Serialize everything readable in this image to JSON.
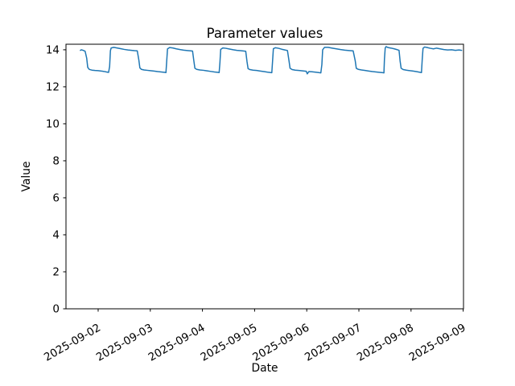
{
  "chart_data": {
    "type": "line",
    "title": "Parameter values",
    "xlabel": "Date",
    "ylabel": "Value",
    "grid": false,
    "legend": "none",
    "line_color": "#1f77b4",
    "line_width": 1.5,
    "axis_color": "#000000",
    "x_unit": "days since 2025-09-02 00:00",
    "xlim_days": [
      -0.617,
      7.006
    ],
    "ylim": [
      0,
      14.3
    ],
    "x_tick_positions_days": [
      0,
      1,
      2,
      3,
      4,
      5,
      6,
      7
    ],
    "x_tick_labels": [
      "2025-09-02",
      "2025-09-03",
      "2025-09-04",
      "2025-09-05",
      "2025-09-06",
      "2025-09-07",
      "2025-09-08",
      "2025-09-09"
    ],
    "y_ticks": [
      0,
      2,
      4,
      6,
      8,
      10,
      12,
      14
    ],
    "series": [
      {
        "name": "Parameter",
        "points": [
          [
            -0.34,
            13.97
          ],
          [
            -0.32,
            14.0
          ],
          [
            -0.29,
            13.97
          ],
          [
            -0.25,
            13.92
          ],
          [
            -0.22,
            13.55
          ],
          [
            -0.2,
            13.05
          ],
          [
            -0.17,
            12.94
          ],
          [
            -0.12,
            12.9
          ],
          [
            -0.06,
            12.88
          ],
          [
            0.0,
            12.87
          ],
          [
            0.06,
            12.85
          ],
          [
            0.11,
            12.83
          ],
          [
            0.16,
            12.8
          ],
          [
            0.2,
            12.78
          ],
          [
            0.22,
            13.1
          ],
          [
            0.235,
            13.95
          ],
          [
            0.25,
            14.1
          ],
          [
            0.3,
            14.13
          ],
          [
            0.36,
            14.1
          ],
          [
            0.43,
            14.06
          ],
          [
            0.5,
            14.02
          ],
          [
            0.57,
            13.99
          ],
          [
            0.64,
            13.97
          ],
          [
            0.7,
            13.95
          ],
          [
            0.75,
            13.94
          ],
          [
            0.78,
            13.45
          ],
          [
            0.8,
            13.02
          ],
          [
            0.83,
            12.94
          ],
          [
            0.88,
            12.91
          ],
          [
            0.94,
            12.89
          ],
          [
            1.0,
            12.87
          ],
          [
            1.07,
            12.85
          ],
          [
            1.14,
            12.82
          ],
          [
            1.21,
            12.8
          ],
          [
            1.28,
            12.78
          ],
          [
            1.3,
            12.77
          ],
          [
            1.315,
            13.4
          ],
          [
            1.33,
            14.05
          ],
          [
            1.37,
            14.12
          ],
          [
            1.43,
            14.1
          ],
          [
            1.5,
            14.05
          ],
          [
            1.57,
            14.01
          ],
          [
            1.64,
            13.98
          ],
          [
            1.71,
            13.96
          ],
          [
            1.78,
            13.94
          ],
          [
            1.81,
            13.93
          ],
          [
            1.835,
            13.4
          ],
          [
            1.855,
            13.0
          ],
          [
            1.89,
            12.94
          ],
          [
            1.95,
            12.91
          ],
          [
            2.02,
            12.89
          ],
          [
            2.09,
            12.86
          ],
          [
            2.16,
            12.83
          ],
          [
            2.23,
            12.8
          ],
          [
            2.3,
            12.78
          ],
          [
            2.32,
            12.77
          ],
          [
            2.335,
            13.3
          ],
          [
            2.35,
            14.02
          ],
          [
            2.39,
            14.1
          ],
          [
            2.45,
            14.08
          ],
          [
            2.52,
            14.04
          ],
          [
            2.59,
            14.0
          ],
          [
            2.66,
            13.97
          ],
          [
            2.73,
            13.95
          ],
          [
            2.8,
            13.93
          ],
          [
            2.83,
            13.92
          ],
          [
            2.855,
            13.35
          ],
          [
            2.875,
            12.98
          ],
          [
            2.91,
            12.93
          ],
          [
            2.97,
            12.9
          ],
          [
            3.04,
            12.88
          ],
          [
            3.11,
            12.85
          ],
          [
            3.18,
            12.82
          ],
          [
            3.25,
            12.79
          ],
          [
            3.31,
            12.77
          ],
          [
            3.33,
            12.76
          ],
          [
            3.345,
            13.4
          ],
          [
            3.36,
            14.06
          ],
          [
            3.4,
            14.11
          ],
          [
            3.46,
            14.08
          ],
          [
            3.52,
            14.03
          ],
          [
            3.58,
            13.99
          ],
          [
            3.63,
            13.96
          ],
          [
            3.66,
            13.4
          ],
          [
            3.68,
            13.0
          ],
          [
            3.72,
            12.93
          ],
          [
            3.78,
            12.9
          ],
          [
            3.85,
            12.88
          ],
          [
            3.92,
            12.86
          ],
          [
            3.99,
            12.84
          ],
          [
            4.01,
            12.7
          ],
          [
            4.04,
            12.82
          ],
          [
            4.1,
            12.81
          ],
          [
            4.17,
            12.79
          ],
          [
            4.23,
            12.77
          ],
          [
            4.27,
            12.75
          ],
          [
            4.29,
            13.2
          ],
          [
            4.305,
            14.0
          ],
          [
            4.34,
            14.13
          ],
          [
            4.41,
            14.13
          ],
          [
            4.49,
            14.09
          ],
          [
            4.57,
            14.05
          ],
          [
            4.65,
            14.01
          ],
          [
            4.73,
            13.98
          ],
          [
            4.81,
            13.96
          ],
          [
            4.89,
            13.94
          ],
          [
            4.93,
            13.4
          ],
          [
            4.95,
            13.0
          ],
          [
            4.99,
            12.94
          ],
          [
            5.05,
            12.91
          ],
          [
            5.12,
            12.88
          ],
          [
            5.19,
            12.85
          ],
          [
            5.26,
            12.82
          ],
          [
            5.33,
            12.8
          ],
          [
            5.4,
            12.78
          ],
          [
            5.46,
            12.76
          ],
          [
            5.48,
            12.75
          ],
          [
            5.49,
            13.5
          ],
          [
            5.505,
            14.1
          ],
          [
            5.52,
            14.17
          ],
          [
            5.56,
            14.12
          ],
          [
            5.62,
            14.09
          ],
          [
            5.68,
            14.05
          ],
          [
            5.74,
            14.0
          ],
          [
            5.77,
            13.97
          ],
          [
            5.79,
            13.4
          ],
          [
            5.81,
            13.0
          ],
          [
            5.85,
            12.93
          ],
          [
            5.91,
            12.9
          ],
          [
            5.98,
            12.87
          ],
          [
            6.04,
            12.85
          ],
          [
            6.1,
            12.82
          ],
          [
            6.16,
            12.79
          ],
          [
            6.2,
            12.77
          ],
          [
            6.215,
            13.5
          ],
          [
            6.23,
            14.08
          ],
          [
            6.26,
            14.15
          ],
          [
            6.31,
            14.12
          ],
          [
            6.37,
            14.08
          ],
          [
            6.43,
            14.05
          ],
          [
            6.49,
            14.09
          ],
          [
            6.56,
            14.05
          ],
          [
            6.63,
            14.01
          ],
          [
            6.7,
            13.99
          ],
          [
            6.78,
            14.0
          ],
          [
            6.85,
            13.97
          ],
          [
            6.92,
            13.99
          ],
          [
            6.97,
            13.97
          ]
        ]
      }
    ]
  }
}
